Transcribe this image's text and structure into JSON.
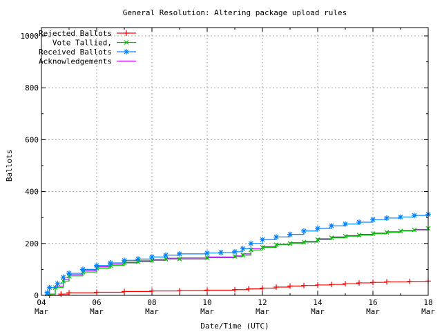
{
  "chart_data": {
    "type": "line",
    "title": "General Resolution: Altering package upload rules",
    "xlabel": "Date/Time (UTC)",
    "ylabel": "Ballots",
    "xlim": [
      "Mar 04 00:00",
      "Mar 18 00:00"
    ],
    "ylim": [
      0,
      1000
    ],
    "grid": true,
    "legend_position": "top-left",
    "x_ticks": [
      {
        "day": "04",
        "month": "Mar"
      },
      {
        "day": "06",
        "month": "Mar"
      },
      {
        "day": "08",
        "month": "Mar"
      },
      {
        "day": "10",
        "month": "Mar"
      },
      {
        "day": "12",
        "month": "Mar"
      },
      {
        "day": "14",
        "month": "Mar"
      },
      {
        "day": "16",
        "month": "Mar"
      },
      {
        "day": "18",
        "month": "Mar"
      }
    ],
    "y_ticks": [
      "0",
      "200",
      "400",
      "600",
      "800",
      "1000"
    ],
    "series": [
      {
        "name": "Rejected Ballots",
        "color": "#ff0000",
        "marker": "plus",
        "points": [
          [
            "Mar 04 07:00",
            0
          ],
          [
            "Mar 04 17:00",
            5
          ],
          [
            "Mar 05 00:00",
            10
          ],
          [
            "Mar 06 00:00",
            12
          ],
          [
            "Mar 07 00:00",
            15
          ],
          [
            "Mar 08 00:00",
            17
          ],
          [
            "Mar 09 00:00",
            18
          ],
          [
            "Mar 10 00:00",
            20
          ],
          [
            "Mar 11 00:00",
            22
          ],
          [
            "Mar 11 12:00",
            25
          ],
          [
            "Mar 12 00:00",
            28
          ],
          [
            "Mar 12 12:00",
            32
          ],
          [
            "Mar 13 00:00",
            36
          ],
          [
            "Mar 13 12:00",
            38
          ],
          [
            "Mar 14 00:00",
            40
          ],
          [
            "Mar 14 12:00",
            42
          ],
          [
            "Mar 15 00:00",
            45
          ],
          [
            "Mar 15 12:00",
            48
          ],
          [
            "Mar 16 00:00",
            50
          ],
          [
            "Mar 16 12:00",
            52
          ],
          [
            "Mar 17 08:00",
            54
          ],
          [
            "Mar 18 00:00",
            55
          ]
        ]
      },
      {
        "name": "Vote Tallied,",
        "color": "#00c000",
        "marker": "cross",
        "points": [
          [
            "Mar 04 05:00",
            5
          ],
          [
            "Mar 04 12:00",
            30
          ],
          [
            "Mar 04 19:00",
            55
          ],
          [
            "Mar 05 00:00",
            75
          ],
          [
            "Mar 05 12:00",
            90
          ],
          [
            "Mar 06 00:00",
            105
          ],
          [
            "Mar 06 12:00",
            115
          ],
          [
            "Mar 07 00:00",
            125
          ],
          [
            "Mar 07 12:00",
            130
          ],
          [
            "Mar 08 00:00",
            135
          ],
          [
            "Mar 08 12:00",
            140
          ],
          [
            "Mar 09 00:00",
            140
          ],
          [
            "Mar 10 00:00",
            145
          ],
          [
            "Mar 11 00:00",
            150
          ],
          [
            "Mar 11 07:00",
            155
          ],
          [
            "Mar 11 14:00",
            175
          ],
          [
            "Mar 12 00:00",
            185
          ],
          [
            "Mar 12 12:00",
            195
          ],
          [
            "Mar 13 00:00",
            200
          ],
          [
            "Mar 13 12:00",
            205
          ],
          [
            "Mar 14 00:00",
            215
          ],
          [
            "Mar 14 12:00",
            222
          ],
          [
            "Mar 15 00:00",
            228
          ],
          [
            "Mar 15 12:00",
            232
          ],
          [
            "Mar 16 00:00",
            238
          ],
          [
            "Mar 16 12:00",
            243
          ],
          [
            "Mar 17 00:00",
            248
          ],
          [
            "Mar 17 12:00",
            252
          ],
          [
            "Mar 18 00:00",
            258
          ]
        ]
      },
      {
        "name": "Received Ballots",
        "color": "#0080ff",
        "marker": "star",
        "points": [
          [
            "Mar 04 05:00",
            10
          ],
          [
            "Mar 04 07:00",
            30
          ],
          [
            "Mar 04 14:00",
            45
          ],
          [
            "Mar 04 19:00",
            70
          ],
          [
            "Mar 05 00:00",
            85
          ],
          [
            "Mar 05 12:00",
            100
          ],
          [
            "Mar 06 00:00",
            115
          ],
          [
            "Mar 06 12:00",
            125
          ],
          [
            "Mar 07 00:00",
            135
          ],
          [
            "Mar 07 12:00",
            140
          ],
          [
            "Mar 08 00:00",
            148
          ],
          [
            "Mar 08 12:00",
            155
          ],
          [
            "Mar 09 00:00",
            160
          ],
          [
            "Mar 10 00:00",
            163
          ],
          [
            "Mar 10 12:00",
            165
          ],
          [
            "Mar 11 00:00",
            168
          ],
          [
            "Mar 11 07:00",
            180
          ],
          [
            "Mar 11 14:00",
            200
          ],
          [
            "Mar 12 00:00",
            215
          ],
          [
            "Mar 12 12:00",
            225
          ],
          [
            "Mar 13 00:00",
            235
          ],
          [
            "Mar 13 12:00",
            248
          ],
          [
            "Mar 14 00:00",
            258
          ],
          [
            "Mar 14 12:00",
            268
          ],
          [
            "Mar 15 00:00",
            275
          ],
          [
            "Mar 15 12:00",
            282
          ],
          [
            "Mar 16 00:00",
            292
          ],
          [
            "Mar 16 12:00",
            298
          ],
          [
            "Mar 17 00:00",
            302
          ],
          [
            "Mar 17 12:00",
            308
          ],
          [
            "Mar 18 00:00",
            312
          ]
        ]
      },
      {
        "name": "Acknowledgements",
        "color": "#c000ff",
        "marker": "none",
        "points": [
          [
            "Mar 04 05:00",
            5
          ],
          [
            "Mar 04 12:00",
            35
          ],
          [
            "Mar 04 19:00",
            62
          ],
          [
            "Mar 05 00:00",
            80
          ],
          [
            "Mar 05 12:00",
            95
          ],
          [
            "Mar 06 00:00",
            110
          ],
          [
            "Mar 06 12:00",
            120
          ],
          [
            "Mar 07 00:00",
            128
          ],
          [
            "Mar 07 12:00",
            133
          ],
          [
            "Mar 08 00:00",
            138
          ],
          [
            "Mar 08 12:00",
            143
          ],
          [
            "Mar 09 00:00",
            144
          ],
          [
            "Mar 10 00:00",
            148
          ],
          [
            "Mar 11 00:00",
            152
          ],
          [
            "Mar 11 07:00",
            160
          ],
          [
            "Mar 11 14:00",
            180
          ],
          [
            "Mar 12 00:00",
            188
          ],
          [
            "Mar 12 12:00",
            197
          ],
          [
            "Mar 13 00:00",
            203
          ],
          [
            "Mar 13 12:00",
            208
          ],
          [
            "Mar 14 00:00",
            218
          ],
          [
            "Mar 14 12:00",
            225
          ],
          [
            "Mar 15 00:00",
            230
          ],
          [
            "Mar 15 12:00",
            235
          ],
          [
            "Mar 16 00:00",
            240
          ],
          [
            "Mar 16 12:00",
            245
          ],
          [
            "Mar 17 00:00",
            250
          ],
          [
            "Mar 17 12:00",
            254
          ],
          [
            "Mar 18 00:00",
            260
          ]
        ]
      }
    ]
  }
}
